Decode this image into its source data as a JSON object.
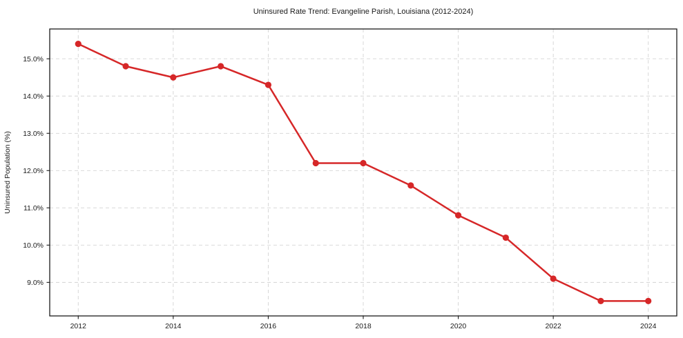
{
  "figure": {
    "title": "Uninsured Rate Trend: Evangeline Parish, Louisiana (2012-2024)"
  },
  "chart_data": {
    "type": "line",
    "title": "Uninsured Rate Trend: Evangeline Parish, Louisiana (2012-2024)",
    "xlabel": "",
    "ylabel": "Uninsured Population (%)",
    "x": [
      2012,
      2013,
      2014,
      2015,
      2016,
      2017,
      2018,
      2019,
      2020,
      2021,
      2022,
      2023,
      2024
    ],
    "series": [
      {
        "name": "Uninsured Rate",
        "values": [
          15.4,
          14.8,
          14.5,
          14.8,
          14.3,
          12.2,
          12.2,
          11.6,
          10.8,
          10.2,
          9.1,
          8.5,
          8.5
        ],
        "color": "#d62728",
        "marker": "circle"
      }
    ],
    "xticks": [
      2012,
      2014,
      2016,
      2018,
      2020,
      2022,
      2024
    ],
    "xtick_labels": [
      "2012",
      "2014",
      "2016",
      "2018",
      "2020",
      "2022",
      "2024"
    ],
    "yticks": [
      9,
      10,
      11,
      12,
      13,
      14,
      15
    ],
    "ytick_labels": [
      "9.0%",
      "10.0%",
      "11.0%",
      "12.0%",
      "13.0%",
      "14.0%",
      "15.0%"
    ],
    "xlim": [
      2011.4,
      2024.6
    ],
    "ylim": [
      8.1,
      15.8
    ],
    "grid": true,
    "grid_style": "dashed",
    "legend": "none",
    "colors": {
      "line": "#d62728",
      "grid": "#d3d3d3",
      "spine": "#1a1a1a",
      "text": "#1a1a1a",
      "background": "#ffffff"
    }
  }
}
